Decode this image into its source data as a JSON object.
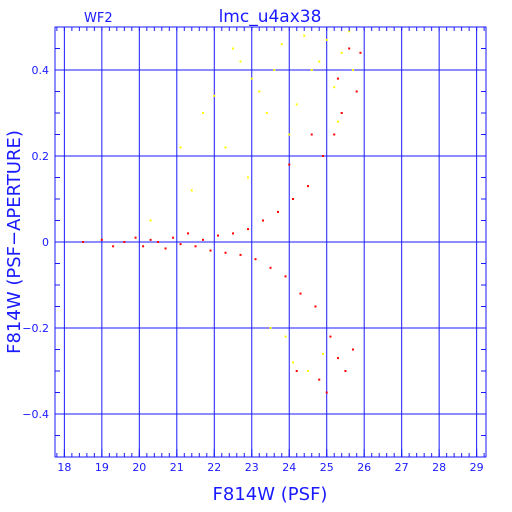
{
  "chart_data": {
    "type": "scatter",
    "title": "lmc_u4ax38",
    "panel_label": "WF2",
    "xlabel": "F814W (PSF)",
    "ylabel": "F814W (PSF−APERTURE)",
    "xlim": [
      17.75,
      29.25
    ],
    "ylim": [
      -0.5,
      0.5
    ],
    "x_ticks": [
      18,
      19,
      20,
      21,
      22,
      23,
      24,
      25,
      26,
      27,
      28,
      29
    ],
    "x_tick_labels": [
      "18",
      "19",
      "20",
      "21",
      "22",
      "23",
      "24",
      "25",
      "26",
      "27",
      "28",
      "29"
    ],
    "y_ticks": [
      -0.4,
      -0.2,
      0,
      0.2,
      0.4
    ],
    "y_tick_labels": [
      "−0.4",
      "−0.2",
      "0",
      "0.2",
      "0.4"
    ],
    "grid": true,
    "colors": {
      "axes": "#1a1aff",
      "grid": "#1a1aff",
      "series_red": "#ff0000",
      "series_yellow": "#ffff00"
    },
    "series": [
      {
        "color": "#ff0000",
        "points": [
          [
            18.5,
            0.0
          ],
          [
            19.0,
            0.005
          ],
          [
            19.3,
            -0.01
          ],
          [
            19.6,
            0.0
          ],
          [
            19.9,
            0.01
          ],
          [
            20.1,
            -0.01
          ],
          [
            20.3,
            0.005
          ],
          [
            20.5,
            0.0
          ],
          [
            20.7,
            -0.015
          ],
          [
            20.9,
            0.01
          ],
          [
            21.1,
            -0.005
          ],
          [
            21.3,
            0.02
          ],
          [
            21.5,
            -0.01
          ],
          [
            21.7,
            0.005
          ],
          [
            21.9,
            -0.02
          ],
          [
            22.1,
            0.015
          ],
          [
            22.3,
            -0.025
          ],
          [
            22.5,
            0.02
          ],
          [
            22.7,
            -0.03
          ],
          [
            22.9,
            0.03
          ],
          [
            23.1,
            -0.04
          ],
          [
            23.3,
            0.05
          ],
          [
            23.5,
            -0.06
          ],
          [
            23.7,
            0.07
          ],
          [
            23.9,
            -0.08
          ],
          [
            24.1,
            0.1
          ],
          [
            24.3,
            -0.12
          ],
          [
            24.5,
            0.13
          ],
          [
            24.7,
            -0.15
          ],
          [
            24.9,
            0.2
          ],
          [
            25.1,
            -0.22
          ],
          [
            25.2,
            0.25
          ],
          [
            25.3,
            -0.27
          ],
          [
            25.4,
            0.3
          ],
          [
            25.5,
            -0.3
          ],
          [
            25.6,
            0.45
          ],
          [
            25.7,
            -0.25
          ],
          [
            25.8,
            0.35
          ],
          [
            25.9,
            0.44
          ],
          [
            24.2,
            -0.3
          ],
          [
            24.6,
            0.25
          ],
          [
            25.0,
            -0.35
          ],
          [
            24.8,
            -0.32
          ],
          [
            25.3,
            0.38
          ],
          [
            24.0,
            0.18
          ]
        ]
      },
      {
        "color": "#ffff00",
        "points": [
          [
            21.1,
            0.22
          ],
          [
            21.7,
            0.3
          ],
          [
            22.0,
            0.34
          ],
          [
            22.3,
            0.22
          ],
          [
            22.5,
            0.45
          ],
          [
            22.7,
            0.42
          ],
          [
            23.0,
            0.38
          ],
          [
            23.2,
            0.35
          ],
          [
            23.4,
            0.3
          ],
          [
            23.6,
            0.4
          ],
          [
            23.8,
            0.46
          ],
          [
            24.0,
            0.25
          ],
          [
            24.2,
            0.32
          ],
          [
            24.4,
            0.48
          ],
          [
            24.6,
            0.4
          ],
          [
            24.8,
            0.42
          ],
          [
            25.0,
            0.47
          ],
          [
            25.2,
            0.36
          ],
          [
            25.4,
            0.44
          ],
          [
            25.6,
            0.49
          ],
          [
            23.9,
            -0.22
          ],
          [
            24.1,
            -0.28
          ],
          [
            24.5,
            -0.3
          ],
          [
            24.9,
            -0.26
          ],
          [
            23.5,
            -0.2
          ],
          [
            21.4,
            0.12
          ],
          [
            20.3,
            0.05
          ],
          [
            22.9,
            0.15
          ],
          [
            25.3,
            0.28
          ],
          [
            25.7,
            0.4
          ]
        ]
      }
    ]
  }
}
